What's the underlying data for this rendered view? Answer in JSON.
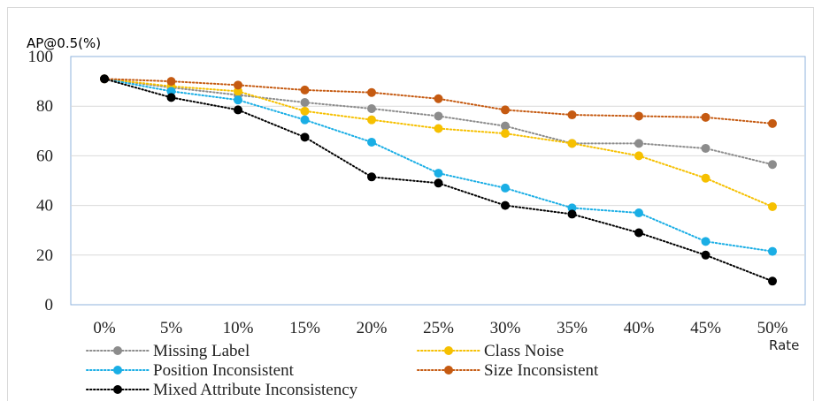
{
  "chart_data": {
    "type": "line",
    "ylabel": "AP@0.5(%)",
    "xlabel": "Rate",
    "categories": [
      "0%",
      "5%",
      "10%",
      "15%",
      "20%",
      "25%",
      "30%",
      "35%",
      "40%",
      "45%",
      "50%"
    ],
    "ylim": [
      0,
      100
    ],
    "yticks": [
      "0",
      "20",
      "40",
      "60",
      "80",
      "100"
    ],
    "grid": true,
    "legend_position": "bottom",
    "series": [
      {
        "name": "Missing Label",
        "color": "#8c8c8c",
        "values": [
          91,
          87.5,
          84.5,
          81.5,
          79,
          76,
          72,
          65,
          65,
          63,
          56.5
        ]
      },
      {
        "name": "Class Noise",
        "color": "#f6c000",
        "values": [
          91,
          88,
          86,
          78,
          74.5,
          71,
          69,
          65,
          60,
          51,
          39.5
        ]
      },
      {
        "name": "Position Inconsistent",
        "color": "#1aaee5",
        "values": [
          91,
          86,
          82.5,
          74.5,
          65.5,
          53,
          47,
          39,
          37,
          25.5,
          21.5
        ]
      },
      {
        "name": "Size Inconsistent",
        "color": "#c55a11",
        "values": [
          91,
          90,
          88.5,
          86.5,
          85.5,
          83,
          78.5,
          76.5,
          76,
          75.5,
          73
        ]
      },
      {
        "name": "Mixed Attribute Inconsistency",
        "color": "#000000",
        "values": [
          91,
          83.5,
          78.5,
          67.5,
          51.5,
          49,
          40,
          36.5,
          29,
          20,
          9.5
        ]
      }
    ]
  }
}
